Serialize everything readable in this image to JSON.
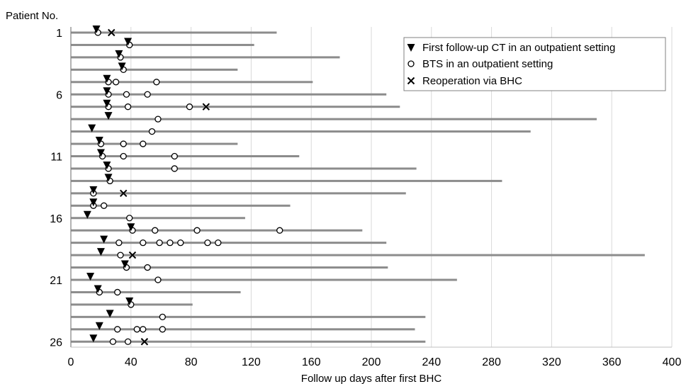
{
  "chart_data": {
    "type": "scatter",
    "title": "",
    "xlabel": "Follow up days after first BHC",
    "ylabel": "Patient No.",
    "xlim": [
      0,
      400
    ],
    "x_ticks": [
      "0",
      "40",
      "80",
      "120",
      "160",
      "200",
      "240",
      "280",
      "320",
      "360",
      "400"
    ],
    "y_tick_patients": [
      1,
      6,
      11,
      16,
      21,
      26
    ],
    "y_tick_labels": [
      "1",
      "6",
      "11",
      "16",
      "21",
      "26"
    ],
    "grid": "vertical",
    "legend": {
      "position": "top-right",
      "entries": [
        {
          "marker": "filled-down-triangle",
          "label": "First follow-up CT in an outpatient setting"
        },
        {
          "marker": "open-circle",
          "label": "BTS in an outpatient setting"
        },
        {
          "marker": "cross",
          "label": "Reoperation via BHC"
        }
      ]
    },
    "colors": {
      "follow_up_bar": "#8c8c8c",
      "grid": "#d9d9d9",
      "marker": "#000000"
    },
    "patients": [
      {
        "patient": 1,
        "follow_up_days": 137,
        "first_ct": 17,
        "bts": [
          18
        ],
        "reoperation": [
          27
        ]
      },
      {
        "patient": 2,
        "follow_up_days": 122,
        "first_ct": 38,
        "bts": [
          39
        ],
        "reoperation": []
      },
      {
        "patient": 3,
        "follow_up_days": 179,
        "first_ct": 32,
        "bts": [
          33
        ],
        "reoperation": []
      },
      {
        "patient": 4,
        "follow_up_days": 111,
        "first_ct": 34,
        "bts": [
          35
        ],
        "reoperation": []
      },
      {
        "patient": 5,
        "follow_up_days": 161,
        "first_ct": 24,
        "bts": [
          25,
          30,
          57
        ],
        "reoperation": []
      },
      {
        "patient": 6,
        "follow_up_days": 210,
        "first_ct": 24,
        "bts": [
          25,
          37,
          51
        ],
        "reoperation": []
      },
      {
        "patient": 7,
        "follow_up_days": 219,
        "first_ct": 24,
        "bts": [
          25,
          38,
          79
        ],
        "reoperation": [
          90
        ]
      },
      {
        "patient": 8,
        "follow_up_days": 350,
        "first_ct": 25,
        "bts": [
          58
        ],
        "reoperation": []
      },
      {
        "patient": 9,
        "follow_up_days": 306,
        "first_ct": 14,
        "bts": [
          54
        ],
        "reoperation": []
      },
      {
        "patient": 10,
        "follow_up_days": 111,
        "first_ct": 19,
        "bts": [
          20,
          35,
          48
        ],
        "reoperation": []
      },
      {
        "patient": 11,
        "follow_up_days": 152,
        "first_ct": 20,
        "bts": [
          21,
          35,
          69
        ],
        "reoperation": []
      },
      {
        "patient": 12,
        "follow_up_days": 230,
        "first_ct": 24,
        "bts": [
          25,
          69
        ],
        "reoperation": []
      },
      {
        "patient": 13,
        "follow_up_days": 287,
        "first_ct": 25,
        "bts": [
          26
        ],
        "reoperation": []
      },
      {
        "patient": 14,
        "follow_up_days": 223,
        "first_ct": 15,
        "bts": [
          15
        ],
        "reoperation": [
          35
        ]
      },
      {
        "patient": 15,
        "follow_up_days": 146,
        "first_ct": 15,
        "bts": [
          15,
          22
        ],
        "reoperation": []
      },
      {
        "patient": 16,
        "follow_up_days": 116,
        "first_ct": 11,
        "bts": [
          39
        ],
        "reoperation": []
      },
      {
        "patient": 17,
        "follow_up_days": 194,
        "first_ct": 40,
        "bts": [
          41,
          56,
          84,
          139
        ],
        "reoperation": []
      },
      {
        "patient": 18,
        "follow_up_days": 210,
        "first_ct": 22,
        "bts": [
          32,
          48,
          59,
          66,
          73,
          91,
          98
        ],
        "reoperation": []
      },
      {
        "patient": 19,
        "follow_up_days": 382,
        "first_ct": 20,
        "bts": [
          33
        ],
        "reoperation": [
          41
        ]
      },
      {
        "patient": 20,
        "follow_up_days": 211,
        "first_ct": 36,
        "bts": [
          37,
          51
        ],
        "reoperation": []
      },
      {
        "patient": 21,
        "follow_up_days": 257,
        "first_ct": 13,
        "bts": [
          58
        ],
        "reoperation": []
      },
      {
        "patient": 22,
        "follow_up_days": 113,
        "first_ct": 18,
        "bts": [
          19,
          31
        ],
        "reoperation": []
      },
      {
        "patient": 23,
        "follow_up_days": 81,
        "first_ct": 39,
        "bts": [
          40
        ],
        "reoperation": []
      },
      {
        "patient": 24,
        "follow_up_days": 236,
        "first_ct": 26,
        "bts": [
          61
        ],
        "reoperation": []
      },
      {
        "patient": 25,
        "follow_up_days": 229,
        "first_ct": 19,
        "bts": [
          31,
          44,
          48,
          61
        ],
        "reoperation": []
      },
      {
        "patient": 26,
        "follow_up_days": 236,
        "first_ct": 15,
        "bts": [
          28,
          38
        ],
        "reoperation": [
          49
        ]
      }
    ]
  }
}
